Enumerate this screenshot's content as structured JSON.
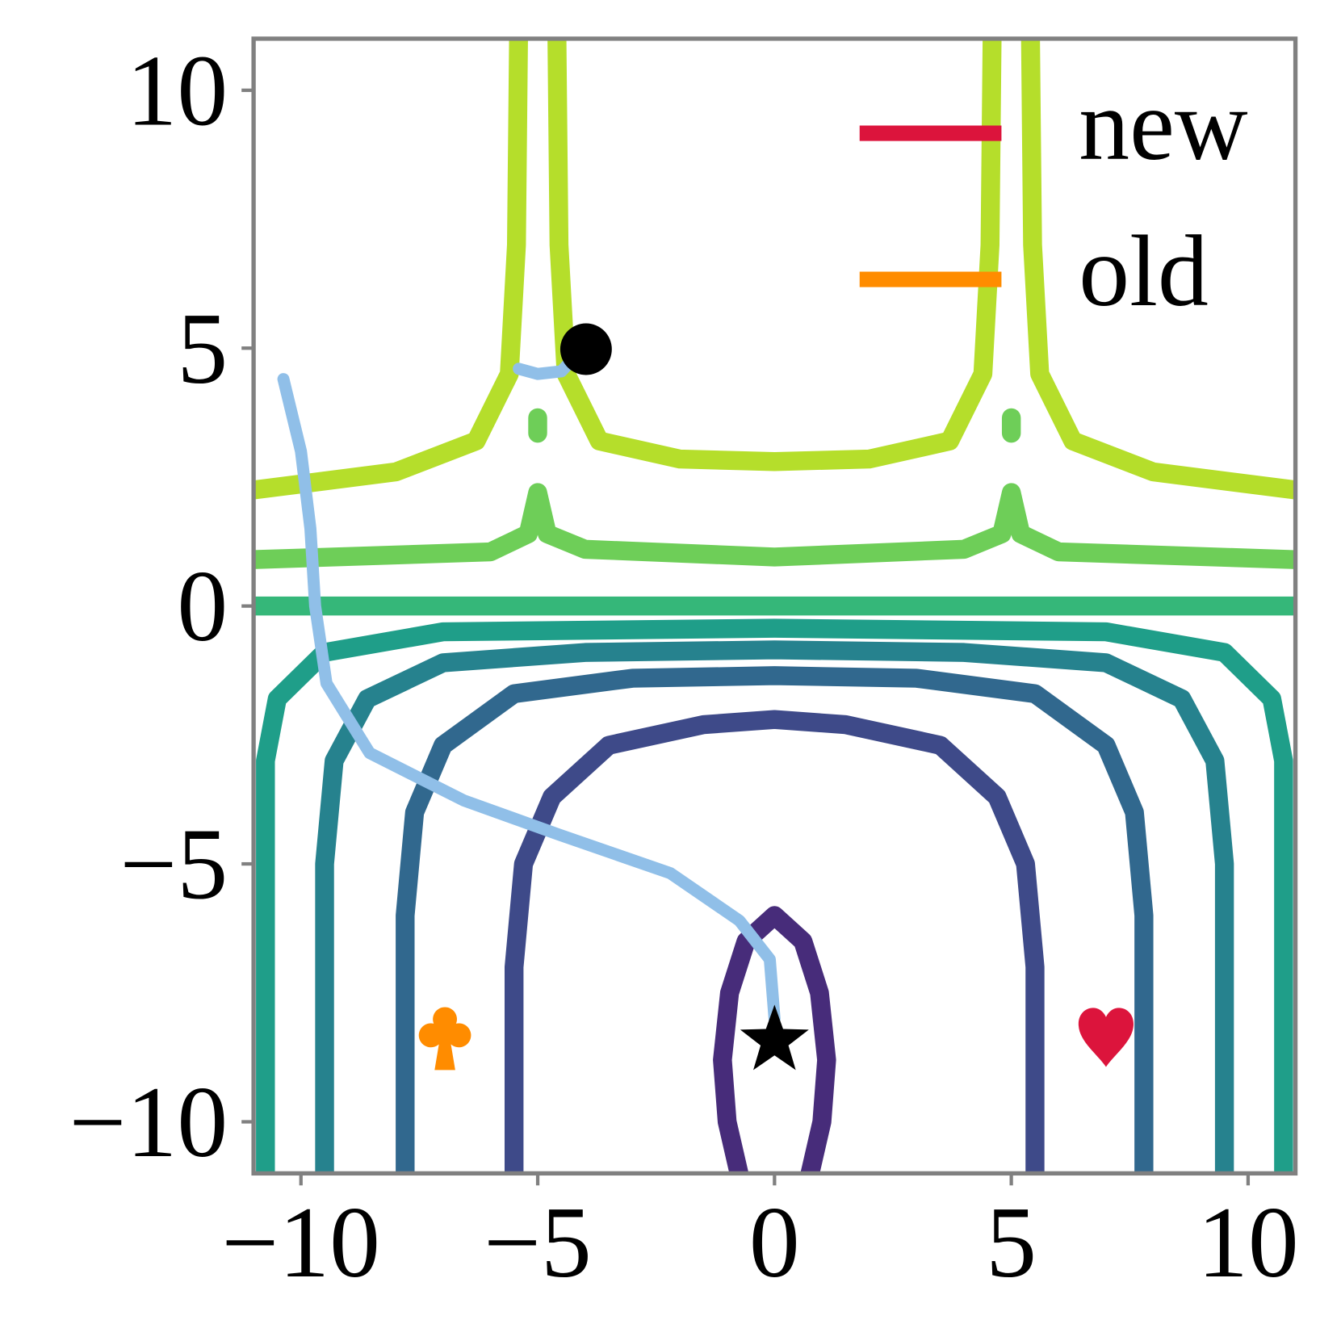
{
  "chart_data": {
    "type": "contour",
    "xlim": [
      -11,
      11
    ],
    "ylim": [
      -11,
      11
    ],
    "xticks": [
      {
        "value": -10,
        "label": "−10"
      },
      {
        "value": -5,
        "label": "−5"
      },
      0,
      5,
      10
    ],
    "yticks": [
      {
        "value": -10,
        "label": "−10"
      },
      {
        "value": -5,
        "label": "−5"
      },
      0,
      5,
      10
    ],
    "contours": [
      {
        "color": "#472c7a",
        "x": [
          -0.75,
          -1.0,
          -1.1,
          -0.95,
          -0.6,
          0,
          0.6,
          0.95,
          1.1,
          1.0,
          0.75
        ],
        "y": [
          -11,
          -10,
          -8.8,
          -7.5,
          -6.5,
          -6,
          -6.5,
          -7.5,
          -8.8,
          -10,
          -11
        ]
      },
      {
        "color": "#3e4a89",
        "x": [
          -5.5,
          -5.5,
          -5.3,
          -4.7,
          -3.5,
          -1.5,
          0,
          1.5,
          3.5,
          4.7,
          5.3,
          5.5,
          5.5
        ],
        "y": [
          -11,
          -7,
          -5,
          -3.7,
          -2.7,
          -2.3,
          -2.2,
          -2.3,
          -2.7,
          -3.7,
          -5,
          -7,
          -11
        ]
      },
      {
        "color": "#31688e",
        "x": [
          -7.8,
          -7.8,
          -7.6,
          -7,
          -5.5,
          -3,
          0,
          3,
          5.5,
          7,
          7.6,
          7.8,
          7.8
        ],
        "y": [
          -11,
          -6,
          -4,
          -2.7,
          -1.7,
          -1.4,
          -1.35,
          -1.4,
          -1.7,
          -2.7,
          -4,
          -6,
          -11
        ]
      },
      {
        "color": "#26828e",
        "x": [
          -9.5,
          -9.5,
          -9.3,
          -8.6,
          -7,
          -4,
          0,
          4,
          7,
          8.6,
          9.3,
          9.5,
          9.5
        ],
        "y": [
          -11,
          -5,
          -3,
          -1.8,
          -1.1,
          -0.9,
          -0.85,
          -0.9,
          -1.1,
          -1.8,
          -3,
          -5,
          -11
        ]
      },
      {
        "color": "#1f9e89",
        "x": [
          -10.75,
          -10.75,
          -10.5,
          -9.5,
          -7,
          0,
          7,
          9.5,
          10.5,
          10.75,
          10.75
        ],
        "y": [
          -11,
          -3,
          -1.8,
          -0.9,
          -0.5,
          -0.43,
          -0.5,
          -0.9,
          -1.8,
          -3,
          -11
        ]
      },
      {
        "color": "#35b779",
        "x": [
          -11,
          11
        ],
        "y": [
          0,
          0
        ]
      },
      {
        "color": "#6ece58",
        "x": [
          -11,
          -6,
          -5.2,
          -5,
          -4.8,
          -4,
          0,
          4,
          4.8,
          5,
          5.2,
          6,
          11,
          null,
          -5,
          -5,
          null,
          5,
          5
        ],
        "y": [
          0.9,
          1.05,
          1.4,
          2.2,
          1.4,
          1.1,
          0.95,
          1.1,
          1.4,
          2.2,
          1.4,
          1.05,
          0.9,
          null,
          3.35,
          3.65,
          null,
          3.35,
          3.65
        ]
      },
      {
        "color": "#b5de2b",
        "x": [
          -11,
          -8,
          -6.3,
          -5.6,
          -5.45,
          -5.4,
          null,
          -4.6,
          -4.55,
          -4.4,
          -3.7,
          -2,
          0,
          2,
          3.7,
          4.4,
          4.55,
          4.6,
          null,
          5.4,
          5.45,
          5.6,
          6.3,
          8,
          11
        ],
        "y": [
          2.25,
          2.6,
          3.2,
          4.5,
          7,
          11.5,
          null,
          11.5,
          7,
          4.5,
          3.2,
          2.85,
          2.8,
          2.85,
          3.2,
          4.5,
          7,
          11.5,
          null,
          11.5,
          7,
          4.5,
          3.2,
          2.6,
          2.25
        ]
      }
    ],
    "trajectory": {
      "color": "#90bfe8",
      "x": [
        -10.37,
        -10.0,
        -9.8,
        -9.7,
        -9.46,
        -8.55,
        -6.56,
        -4.56,
        -2.2,
        -0.74,
        -0.1,
        0,
        null,
        -5.4,
        -5.0,
        -4.5,
        -4.3
      ],
      "y": [
        4.4,
        3.0,
        1.5,
        0,
        -1.5,
        -2.85,
        -3.77,
        -4.43,
        -5.18,
        -6.1,
        -6.85,
        -8.0,
        null,
        4.6,
        4.5,
        4.55,
        4.75
      ]
    },
    "points": [
      {
        "symbol": "star",
        "color": "#000000",
        "x": 0,
        "y": -8.43
      },
      {
        "symbol": "circle",
        "color": "#000000",
        "x": -3.98,
        "y": 4.98
      },
      {
        "symbol": "heart",
        "color": "#dc143c",
        "x": 7.0,
        "y": -8.27
      },
      {
        "symbol": "club",
        "color": "#ff8c00",
        "x": -6.96,
        "y": -8.43
      }
    ],
    "legend": [
      {
        "name": "new",
        "color": "#dc143c"
      },
      {
        "name": "old",
        "color": "#ff8c00"
      }
    ],
    "legend_loc": "upper right"
  }
}
